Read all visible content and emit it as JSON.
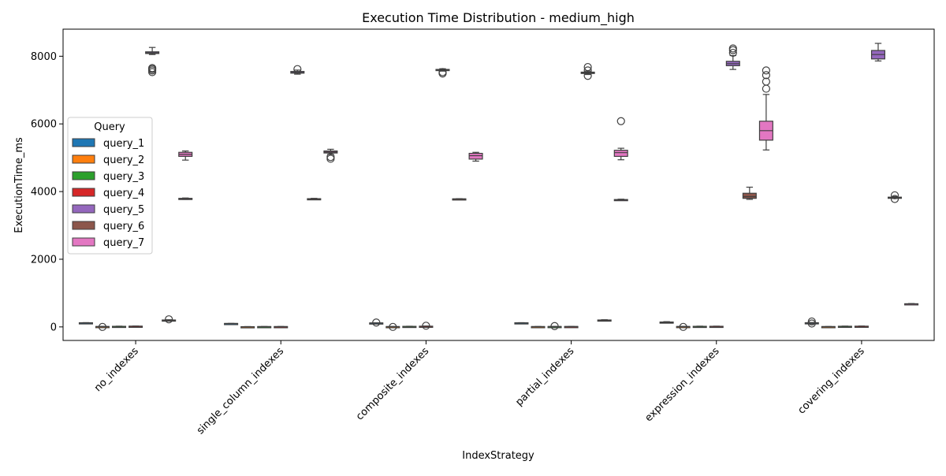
{
  "chart_data": {
    "type": "box",
    "title": "Execution Time Distribution - medium_high",
    "xlabel": "IndexStrategy",
    "ylabel": "ExecutionTime_ms",
    "ylim": [
      -400,
      8800
    ],
    "yticks": [
      0,
      2000,
      4000,
      6000,
      8000
    ],
    "categories": [
      "no_indexes",
      "single_column_indexes",
      "composite_indexes",
      "partial_indexes",
      "expression_indexes",
      "covering_indexes"
    ],
    "legend": {
      "title": "Query",
      "placement": "center-left"
    },
    "grid": false,
    "series": [
      {
        "name": "query_1",
        "color": "#1f77b4",
        "boxes": [
          {
            "min": 115,
            "q1": 118,
            "median": 120,
            "q3": 123,
            "max": 126,
            "outliers": []
          },
          {
            "min": 95,
            "q1": 98,
            "median": 100,
            "q3": 102,
            "max": 104,
            "outliers": []
          },
          {
            "min": 110,
            "q1": 112,
            "median": 115,
            "q3": 118,
            "max": 120,
            "outliers": [
              130
            ]
          },
          {
            "min": 115,
            "q1": 118,
            "median": 120,
            "q3": 122,
            "max": 125,
            "outliers": []
          },
          {
            "min": 115,
            "q1": 118,
            "median": 130,
            "q3": 145,
            "max": 155,
            "outliers": []
          },
          {
            "min": 110,
            "q1": 114,
            "median": 118,
            "q3": 124,
            "max": 130,
            "outliers": [
              160,
              100
            ]
          }
        ]
      },
      {
        "name": "query_2",
        "color": "#ff7f0e",
        "boxes": [
          {
            "min": 5,
            "q1": 8,
            "median": 10,
            "q3": 12,
            "max": 15,
            "outliers": [
              0
            ]
          },
          {
            "min": 3,
            "q1": 5,
            "median": 6,
            "q3": 7,
            "max": 9,
            "outliers": []
          },
          {
            "min": 5,
            "q1": 7,
            "median": 8,
            "q3": 10,
            "max": 12,
            "outliers": [
              0
            ]
          },
          {
            "min": 5,
            "q1": 7,
            "median": 8,
            "q3": 10,
            "max": 12,
            "outliers": []
          },
          {
            "min": 5,
            "q1": 8,
            "median": 10,
            "q3": 12,
            "max": 15,
            "outliers": [
              0
            ]
          },
          {
            "min": 5,
            "q1": 7,
            "median": 8,
            "q3": 10,
            "max": 12,
            "outliers": []
          }
        ]
      },
      {
        "name": "query_3",
        "color": "#2ca02c",
        "boxes": [
          {
            "min": 8,
            "q1": 12,
            "median": 15,
            "q3": 18,
            "max": 22,
            "outliers": []
          },
          {
            "min": 5,
            "q1": 7,
            "median": 8,
            "q3": 10,
            "max": 12,
            "outliers": []
          },
          {
            "min": 10,
            "q1": 13,
            "median": 15,
            "q3": 17,
            "max": 20,
            "outliers": []
          },
          {
            "min": 6,
            "q1": 8,
            "median": 10,
            "q3": 12,
            "max": 14,
            "outliers": [
              25
            ]
          },
          {
            "min": 8,
            "q1": 12,
            "median": 15,
            "q3": 18,
            "max": 22,
            "outliers": []
          },
          {
            "min": 10,
            "q1": 14,
            "median": 17,
            "q3": 20,
            "max": 24,
            "outliers": []
          }
        ]
      },
      {
        "name": "query_4",
        "color": "#d62728",
        "boxes": [
          {
            "min": 12,
            "q1": 16,
            "median": 19,
            "q3": 22,
            "max": 26,
            "outliers": []
          },
          {
            "min": 5,
            "q1": 7,
            "median": 8,
            "q3": 10,
            "max": 12,
            "outliers": []
          },
          {
            "min": 12,
            "q1": 15,
            "median": 18,
            "q3": 22,
            "max": 26,
            "outliers": [
              35
            ]
          },
          {
            "min": 6,
            "q1": 8,
            "median": 10,
            "q3": 12,
            "max": 14,
            "outliers": []
          },
          {
            "min": 10,
            "q1": 13,
            "median": 16,
            "q3": 19,
            "max": 22,
            "outliers": []
          },
          {
            "min": 12,
            "q1": 15,
            "median": 18,
            "q3": 22,
            "max": 26,
            "outliers": []
          }
        ]
      },
      {
        "name": "query_5",
        "color": "#9467bd",
        "boxes": [
          {
            "min": 8050,
            "q1": 8080,
            "median": 8100,
            "q3": 8130,
            "max": 8260,
            "outliers": [
              7650,
              7620,
              7580,
              7530
            ]
          },
          {
            "min": 7470,
            "q1": 7500,
            "median": 7520,
            "q3": 7550,
            "max": 7590,
            "outliers": [
              7620
            ]
          },
          {
            "min": 7560,
            "q1": 7580,
            "median": 7600,
            "q3": 7610,
            "max": 7630,
            "outliers": [
              7530,
              7490
            ]
          },
          {
            "min": 7460,
            "q1": 7490,
            "median": 7510,
            "q3": 7530,
            "max": 7560,
            "outliers": [
              7680,
              7580,
              7420
            ]
          },
          {
            "min": 7610,
            "q1": 7720,
            "median": 7780,
            "q3": 7850,
            "max": 8020,
            "outliers": [
              8230,
              8180,
              8100
            ]
          },
          {
            "min": 7860,
            "q1": 7920,
            "median": 8050,
            "q3": 8170,
            "max": 8380,
            "outliers": []
          }
        ]
      },
      {
        "name": "query_6",
        "color": "#8c564b",
        "boxes": [
          {
            "min": 190,
            "q1": 195,
            "median": 200,
            "q3": 205,
            "max": 212,
            "outliers": [
              225
            ]
          },
          {
            "min": 3770,
            "q1": 3780,
            "median": 3785,
            "q3": 3790,
            "max": 3800,
            "outliers": []
          },
          {
            "min": 3770,
            "q1": 3775,
            "median": 3780,
            "q3": 3785,
            "max": 3790,
            "outliers": []
          },
          {
            "min": 190,
            "q1": 196,
            "median": 200,
            "q3": 205,
            "max": 212,
            "outliers": []
          },
          {
            "min": 3770,
            "q1": 3800,
            "median": 3850,
            "q3": 3950,
            "max": 4130,
            "outliers": []
          },
          {
            "min": 3800,
            "q1": 3810,
            "median": 3820,
            "q3": 3835,
            "max": 3850,
            "outliers": [
              3890,
              3780
            ]
          }
        ]
      },
      {
        "name": "query_7",
        "color": "#e377c2",
        "boxes": [
          {
            "min": 3770,
            "q1": 3780,
            "median": 3790,
            "q3": 3800,
            "max": 3810,
            "outliers": []
          },
          {
            "min": 5100,
            "q1": 5140,
            "median": 5170,
            "q3": 5200,
            "max": 5250,
            "outliers": [
              5020,
              4970
            ]
          },
          {
            "min": 4900,
            "q1": 4960,
            "median": 5060,
            "q3": 5130,
            "max": 5160,
            "outliers": []
          },
          {
            "min": 3740,
            "q1": 3750,
            "median": 3755,
            "q3": 3765,
            "max": 3775,
            "outliers": []
          },
          {
            "min": 5230,
            "q1": 5520,
            "median": 5800,
            "q3": 6080,
            "max": 6870,
            "outliers": [
              7580,
              7440,
              7250,
              7040
            ]
          },
          {
            "min": 670,
            "q1": 675,
            "median": 680,
            "q3": 685,
            "max": 690,
            "outliers": []
          }
        ]
      }
    ],
    "extra_boxes": [
      {
        "category_index": 0,
        "color": "#e377c2",
        "min": 4930,
        "q1": 5040,
        "median": 5100,
        "q3": 5160,
        "max": 5200,
        "outliers": []
      },
      {
        "category_index": 3,
        "color": "#e377c2",
        "min": 4940,
        "q1": 5040,
        "median": 5150,
        "q3": 5220,
        "max": 5280,
        "outliers": [
          6080
        ]
      }
    ]
  }
}
